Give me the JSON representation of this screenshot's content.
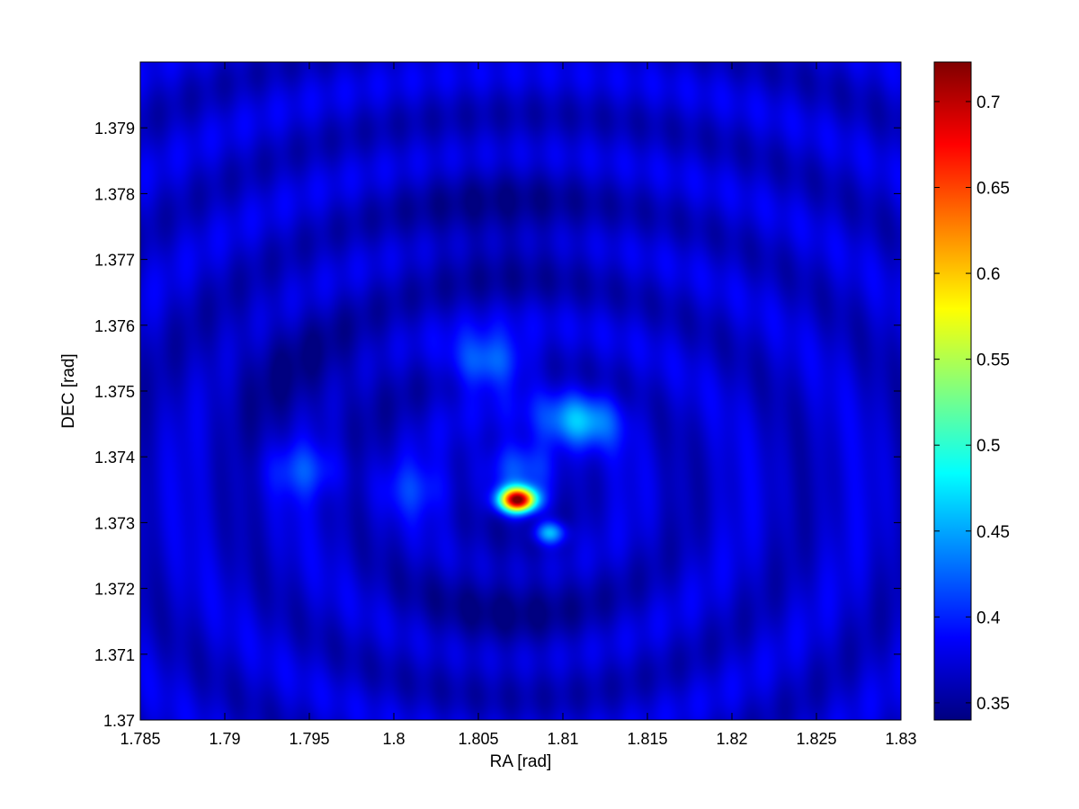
{
  "chart_data": {
    "type": "heatmap",
    "title": "",
    "xlabel": "RA [rad]",
    "ylabel": "DEC [rad]",
    "xlim": [
      1.785,
      1.83
    ],
    "ylim": [
      1.37,
      1.38
    ],
    "xticks": [
      "1.785",
      "1.79",
      "1.795",
      "1.8",
      "1.805",
      "1.81",
      "1.815",
      "1.82",
      "1.825",
      "1.83"
    ],
    "yticks": [
      "1.37",
      "1.371",
      "1.372",
      "1.373",
      "1.374",
      "1.375",
      "1.376",
      "1.377",
      "1.378",
      "1.379"
    ],
    "colormap": "jet",
    "colorbar": {
      "min": 0.34,
      "max": 0.723,
      "ticks": [
        "0.35",
        "0.4",
        "0.45",
        "0.5",
        "0.55",
        "0.6",
        "0.65",
        "0.7"
      ]
    },
    "background_level": 0.37,
    "features": [
      {
        "name": "peak",
        "ra": 1.8073,
        "dec": 1.37335,
        "value": 0.72
      },
      {
        "name": "secondary",
        "ra": 1.8092,
        "dec": 1.37285,
        "value": 0.47
      },
      {
        "name": "blob",
        "ra": 1.811,
        "dec": 1.37455,
        "value": 0.45
      },
      {
        "name": "blob",
        "ra": 1.8055,
        "dec": 1.37545,
        "value": 0.44
      },
      {
        "name": "blob",
        "ra": 1.8075,
        "dec": 1.3739,
        "value": 0.42
      },
      {
        "name": "blob",
        "ra": 1.7948,
        "dec": 1.3738,
        "value": 0.41
      },
      {
        "name": "blob",
        "ra": 1.8013,
        "dec": 1.3735,
        "value": 0.4
      },
      {
        "name": "trough",
        "ra": 1.8065,
        "dec": 1.37175,
        "value": 0.35
      },
      {
        "name": "trough",
        "ra": 1.806,
        "dec": 1.3775,
        "value": 0.35
      },
      {
        "name": "trough",
        "ra": 1.7945,
        "dec": 1.3753,
        "value": 0.35
      }
    ]
  }
}
